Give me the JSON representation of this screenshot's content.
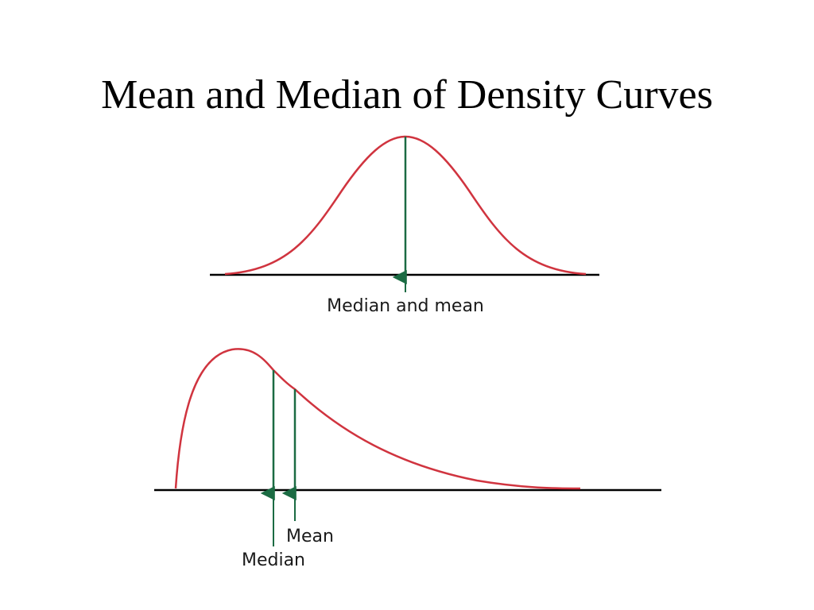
{
  "slide": {
    "title": "Mean and Median of Density Curves"
  },
  "colors": {
    "curve": "#d0343f",
    "marker": "#1b6b43",
    "axis": "#000000",
    "text": "#1a1a1a"
  },
  "symmetric_curve": {
    "label": "Median and mean"
  },
  "skewed_curve": {
    "mean_label": "Mean",
    "median_label": "Median"
  }
}
